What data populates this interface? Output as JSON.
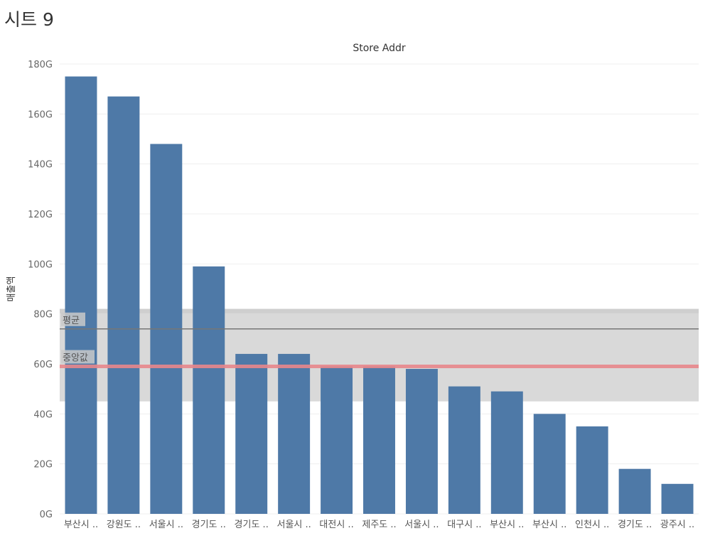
{
  "sheet": {
    "title": "시트 9"
  },
  "chart_data": {
    "type": "bar",
    "title": "",
    "column_header": "Store Addr",
    "ylabel": "매출액",
    "xlabel": "",
    "ylim": [
      0,
      180
    ],
    "yticks": [
      0,
      20,
      40,
      60,
      80,
      100,
      120,
      140,
      160,
      180
    ],
    "ytick_labels": [
      "0G",
      "20G",
      "40G",
      "60G",
      "80G",
      "100G",
      "120G",
      "140G",
      "160G",
      "180G"
    ],
    "categories": [
      "부산시 ..",
      "강원도 ..",
      "서울시 ..",
      "경기도 ..",
      "경기도 ..",
      "서울시 ..",
      "대전시 ..",
      "제주도 ..",
      "서울시 ..",
      "대구시 ..",
      "부산시 ..",
      "부산시 ..",
      "인천시 ..",
      "경기도 ..",
      "광주시 .."
    ],
    "values": [
      175,
      167,
      148,
      99,
      64,
      64,
      59,
      59,
      58,
      51,
      49,
      40,
      35,
      18,
      12
    ],
    "bar_color": "#4e79a7",
    "grid": true,
    "reference_band": {
      "from": 45,
      "to": 82,
      "color": "#d9d9d9"
    },
    "reference_lines": [
      {
        "label": "평균",
        "value": 74,
        "color": "#767676"
      },
      {
        "label": "중앙값",
        "value": 59,
        "color": "#e8878c"
      }
    ]
  }
}
